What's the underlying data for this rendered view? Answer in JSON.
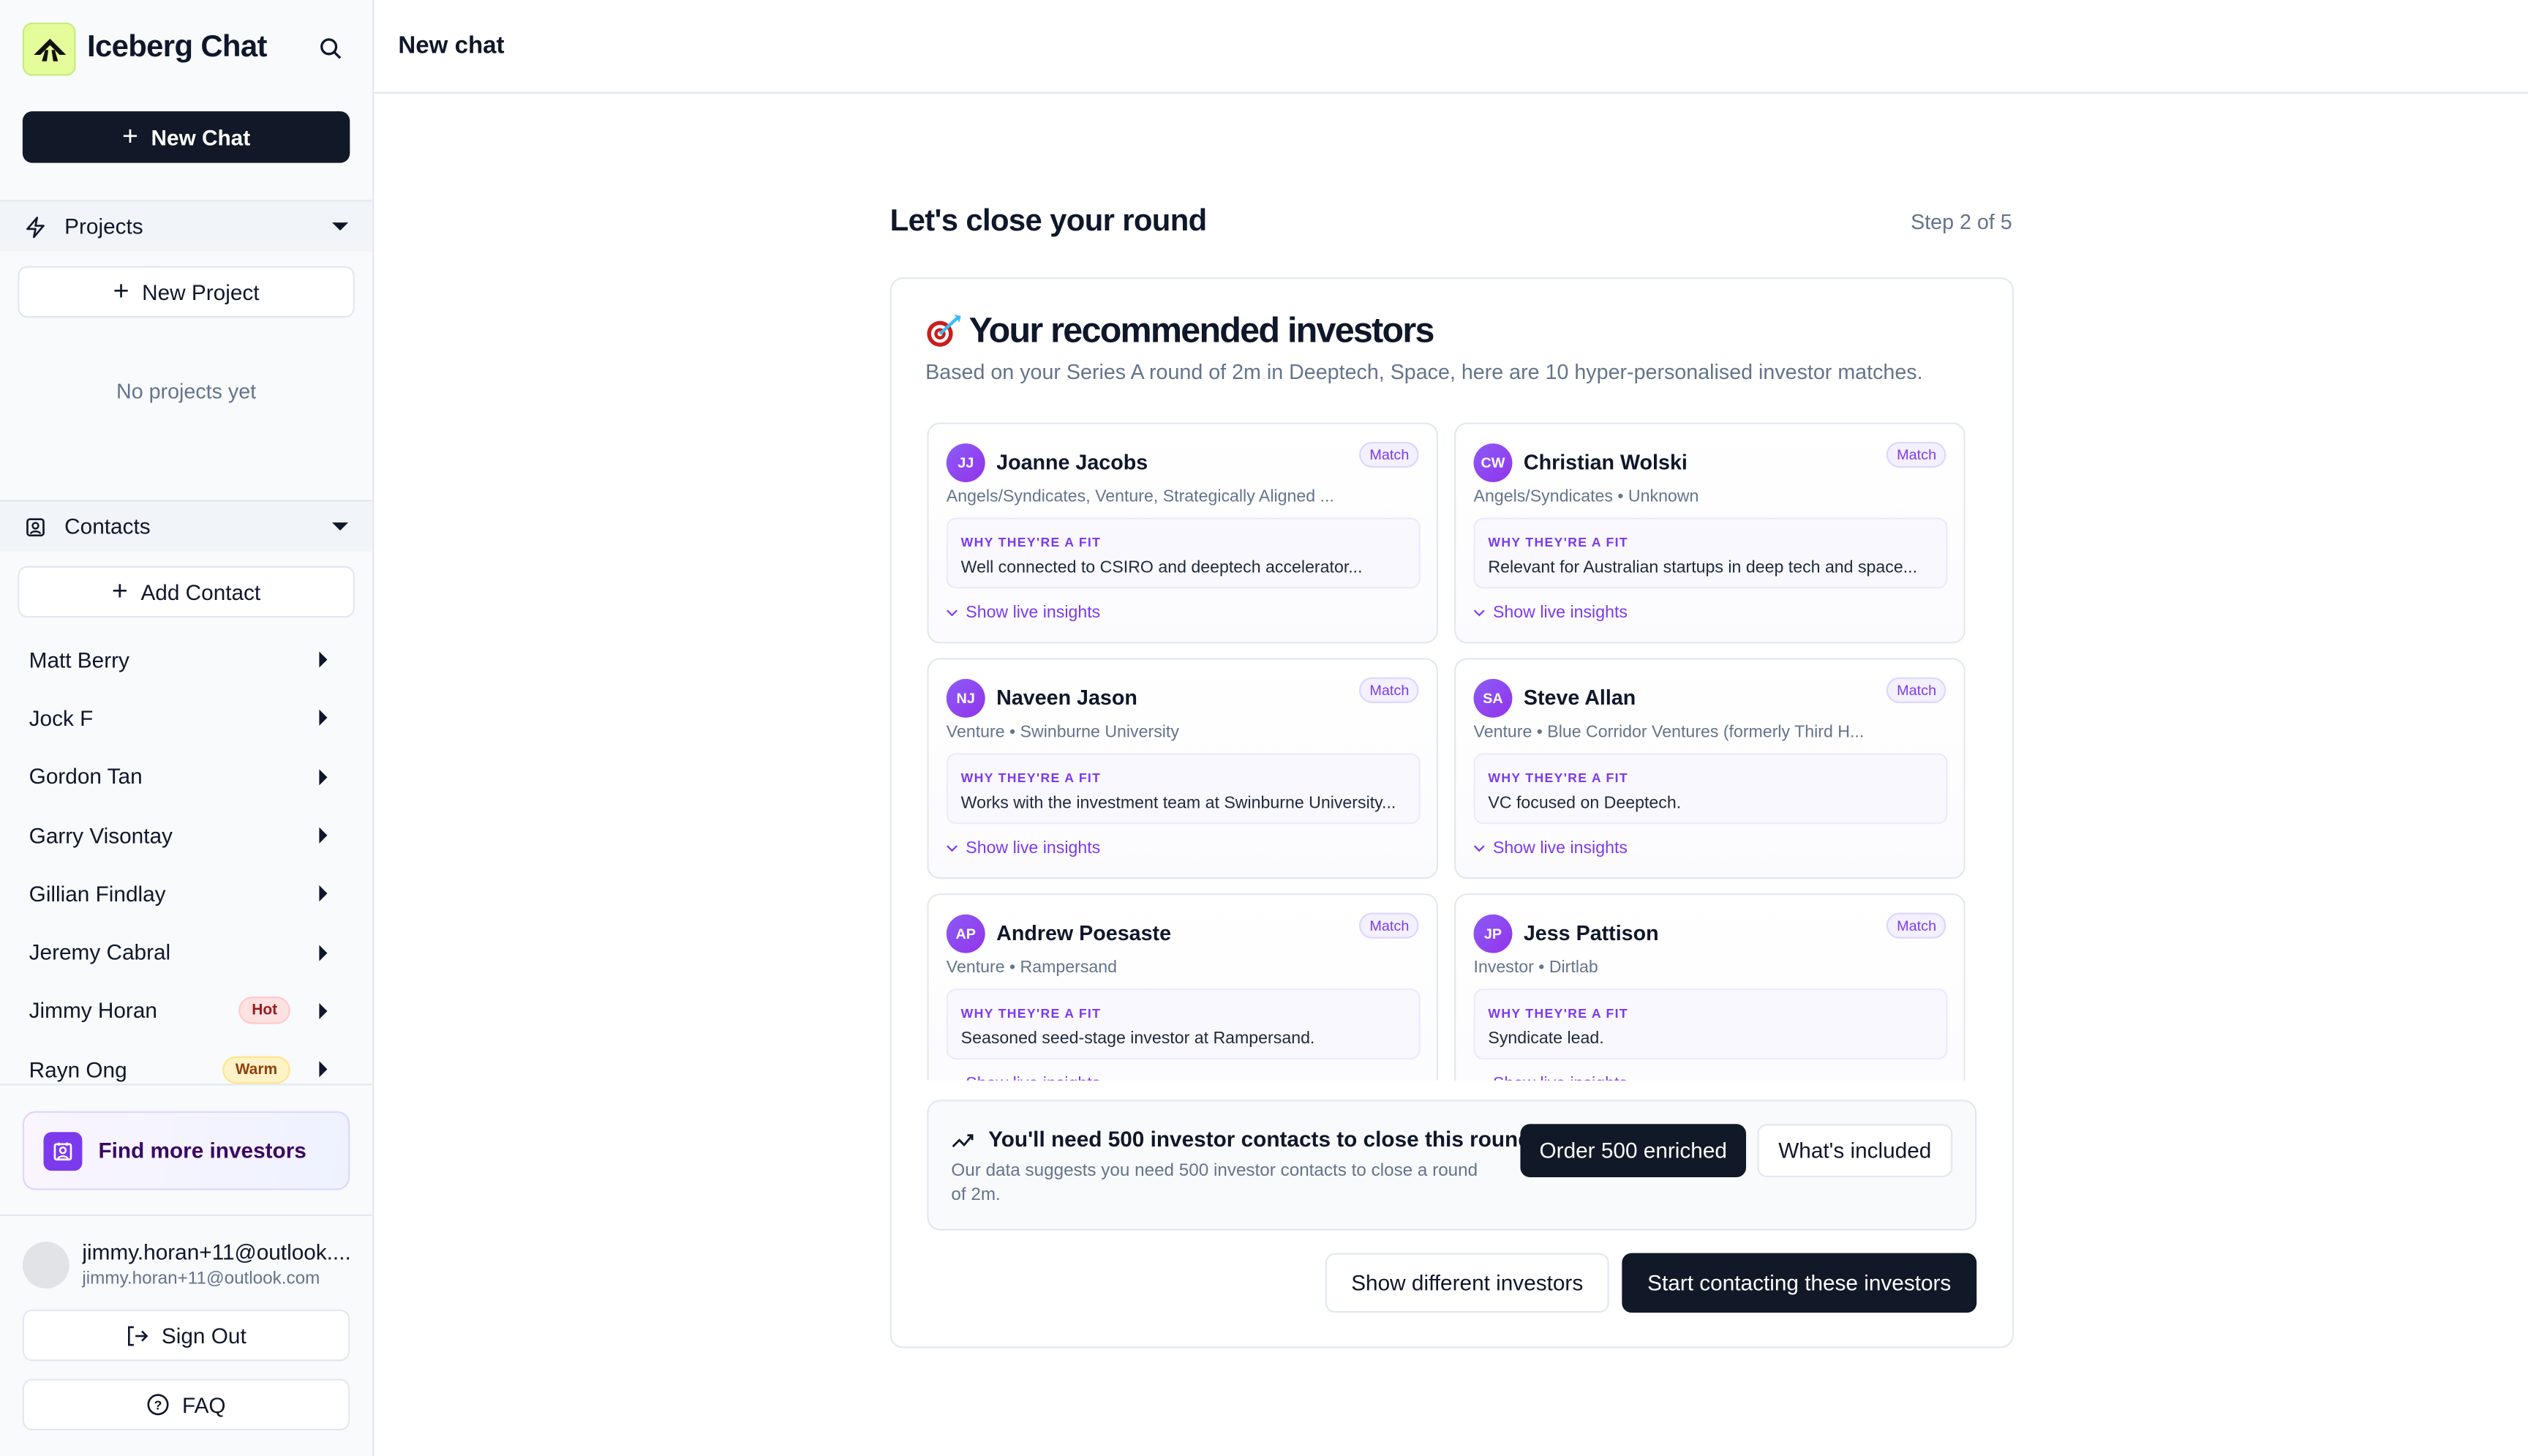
{
  "app": {
    "title": "Iceberg Chat",
    "brand_color": "#e4fc9a",
    "accent": "#7c3aed"
  },
  "sidebar": {
    "new_chat": "New Chat",
    "projects": {
      "label": "Projects",
      "new_label": "New Project",
      "empty": "No projects yet"
    },
    "contacts": {
      "label": "Contacts",
      "add_label": "Add Contact",
      "items": [
        {
          "name": "Matt Berry",
          "badge": ""
        },
        {
          "name": "Jock F",
          "badge": ""
        },
        {
          "name": "Gordon Tan",
          "badge": ""
        },
        {
          "name": "Garry Visontay",
          "badge": ""
        },
        {
          "name": "Gillian Findlay",
          "badge": ""
        },
        {
          "name": "Jeremy Cabral",
          "badge": ""
        },
        {
          "name": "Jimmy Horan",
          "badge": "Hot"
        },
        {
          "name": "Rayn Ong",
          "badge": "Warm"
        }
      ]
    },
    "find_more": "Find more investors",
    "user": {
      "name": "jimmy.horan+11@outlook....",
      "email": "jimmy.horan+11@outlook.com"
    },
    "sign_out": "Sign Out",
    "faq": "FAQ"
  },
  "header": {
    "title": "New chat"
  },
  "main": {
    "title": "Let's close your round",
    "step": "Step 2 of 5",
    "heading": "Your recommended investors",
    "subtitle": "Based on your Series A round of 2m in Deeptech, Space, here are 10 hyper-personalised investor matches.",
    "fit_label": "WHY THEY'RE A FIT",
    "insights_label": "Show live insights",
    "match_label": "Match",
    "investors": [
      {
        "initials": "JJ",
        "name": "Joanne Jacobs",
        "meta": "Angels/Syndicates, Venture, Strategically Aligned ...",
        "fit": "Well connected to CSIRO and deeptech accelerator..."
      },
      {
        "initials": "CW",
        "name": "Christian Wolski",
        "meta": "Angels/Syndicates • Unknown",
        "fit": "Relevant for Australian startups in deep tech and space..."
      },
      {
        "initials": "NJ",
        "name": "Naveen Jason",
        "meta": "Venture • Swinburne University",
        "fit": "Works with the investment team at Swinburne University..."
      },
      {
        "initials": "SA",
        "name": "Steve Allan",
        "meta": "Venture • Blue Corridor Ventures (formerly Third H...",
        "fit": "VC focused on Deeptech."
      },
      {
        "initials": "AP",
        "name": "Andrew Poesaste",
        "meta": "Venture • Rampersand",
        "fit": "Seasoned seed-stage investor at Rampersand."
      },
      {
        "initials": "JP",
        "name": "Jess Pattison",
        "meta": "Investor • Dirtlab",
        "fit": "Syndicate lead."
      }
    ],
    "banner": {
      "title": "You'll need 500 investor contacts to close this round",
      "text": "Our data suggests you need 500 investor contacts to close a round of 2m.",
      "order": "Order 500 enriched",
      "included": "What's included"
    },
    "show_different": "Show different investors",
    "start": "Start contacting these investors"
  }
}
